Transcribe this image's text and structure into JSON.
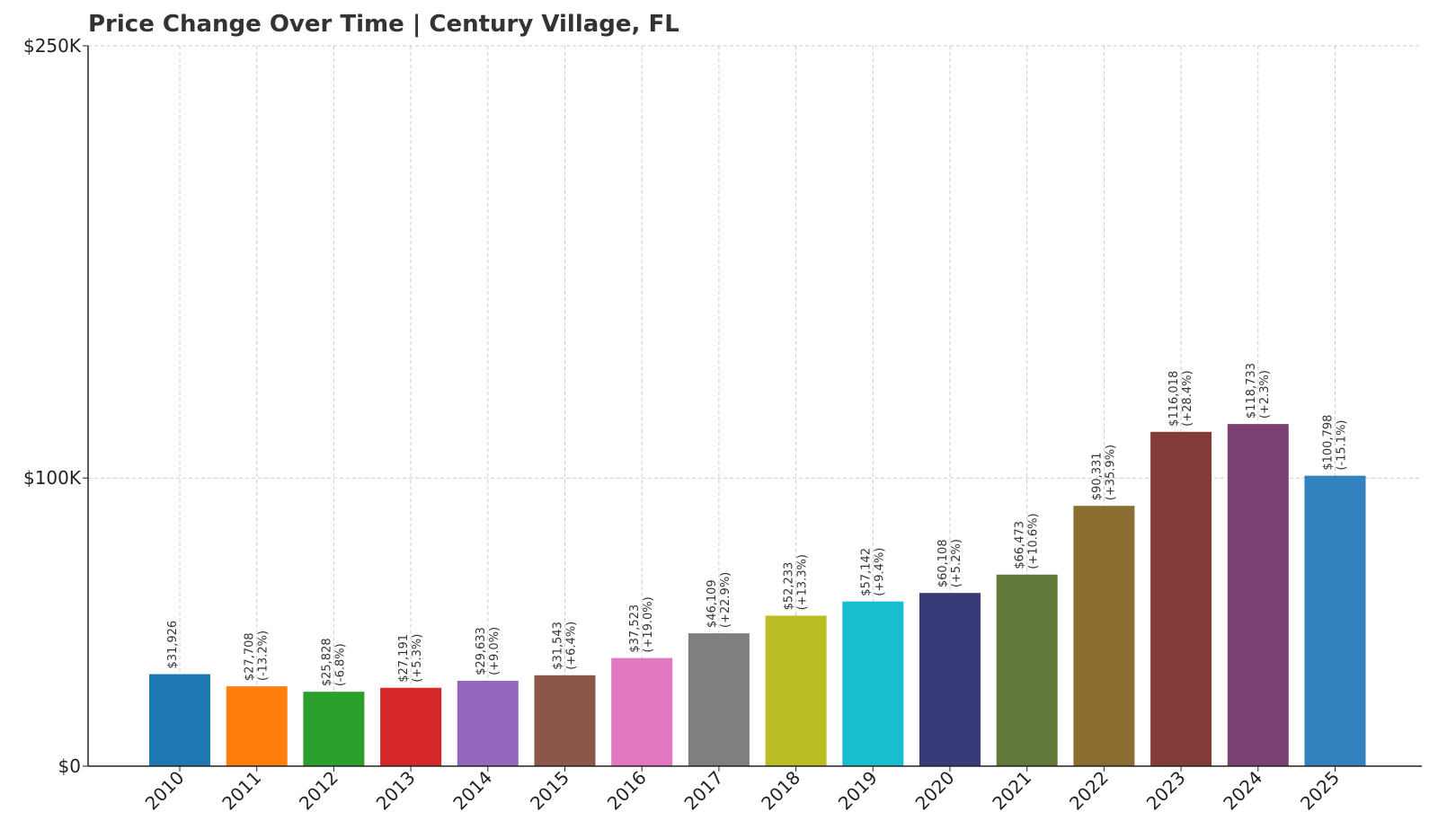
{
  "chart_data": {
    "type": "bar",
    "title": "Price Change Over Time | Century Village, FL",
    "xlabel": "",
    "ylabel": "",
    "ylim": [
      0,
      250000
    ],
    "yticks": [
      {
        "value": 0,
        "label": "$0"
      },
      {
        "value": 100000,
        "label": "$100K"
      },
      {
        "value": 250000,
        "label": "$250K"
      }
    ],
    "grid": true,
    "categories": [
      "2010",
      "2011",
      "2012",
      "2013",
      "2014",
      "2015",
      "2016",
      "2017",
      "2018",
      "2019",
      "2020",
      "2021",
      "2022",
      "2023",
      "2024",
      "2025"
    ],
    "values": [
      31926,
      27708,
      25828,
      27191,
      29633,
      31543,
      37523,
      46109,
      52233,
      57142,
      60108,
      66473,
      90331,
      116018,
      118733,
      100798
    ],
    "value_labels": [
      "$31,926",
      "$27,708",
      "$25,828",
      "$27,191",
      "$29,633",
      "$31,543",
      "$37,523",
      "$46,109",
      "$52,233",
      "$57,142",
      "$60,108",
      "$66,473",
      "$90,331",
      "$116,018",
      "$118,733",
      "$100,798"
    ],
    "change_labels": [
      "",
      "(-13.2%)",
      "(-6.8%)",
      "(+5.3%)",
      "(+9.0%)",
      "(+6.4%)",
      "(+19.0%)",
      "(+22.9%)",
      "(+13.3%)",
      "(+9.4%)",
      "(+5.2%)",
      "(+10.6%)",
      "(+35.9%)",
      "(+28.4%)",
      "(+2.3%)",
      "(-15.1%)"
    ],
    "colors": [
      "#1f77b4",
      "#ff7f0e",
      "#2ca02c",
      "#d62728",
      "#9467bd",
      "#8c564b",
      "#e377c2",
      "#7f7f7f",
      "#bcbd22",
      "#17becf",
      "#393b79",
      "#637939",
      "#8c6d31",
      "#843c39",
      "#7b4173",
      "#3182bd"
    ]
  }
}
